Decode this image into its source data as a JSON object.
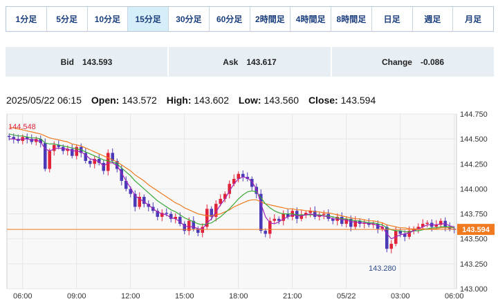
{
  "tabs": [
    {
      "label": "1分足",
      "active": false
    },
    {
      "label": "5分足",
      "active": false
    },
    {
      "label": "10分足",
      "active": false
    },
    {
      "label": "15分足",
      "active": true
    },
    {
      "label": "30分足",
      "active": false
    },
    {
      "label": "60分足",
      "active": false
    },
    {
      "label": "2時間足",
      "active": false
    },
    {
      "label": "4時間足",
      "active": false
    },
    {
      "label": "8時間足",
      "active": false
    },
    {
      "label": "日足",
      "active": false
    },
    {
      "label": "週足",
      "active": false
    },
    {
      "label": "月足",
      "active": false
    }
  ],
  "quotes": {
    "bid_label": "Bid",
    "bid_value": "143.593",
    "ask_label": "Ask",
    "ask_value": "143.617",
    "change_label": "Change",
    "change_value": "-0.086"
  },
  "ohlc": {
    "datetime": "2025/05/22 06:15",
    "open_label": "Open:",
    "open": "143.572",
    "high_label": "High:",
    "high": "143.602",
    "low_label": "Low:",
    "low": "143.560",
    "close_label": "Close:",
    "close": "143.594"
  },
  "colors": {
    "up": "#e0243a",
    "down": "#4a3ab8",
    "ma_fast": "#a223b8",
    "ma_mid": "#3aa83a",
    "ma_slow": "#f07a1f",
    "price_line": "#f07a1f",
    "grid": "#e6e6e6"
  },
  "chart_data": {
    "type": "candlestick",
    "ylim": [
      143.0,
      144.75
    ],
    "y_ticks": [
      "144.750",
      "144.500",
      "144.250",
      "144.000",
      "143.750",
      "143.500",
      "143.250",
      "143.000"
    ],
    "x_ticks": [
      "06:00",
      "09:00",
      "12:00",
      "15:00",
      "18:00",
      "21:00",
      "05/22",
      "03:00",
      "06:00"
    ],
    "x_tick_index": [
      3,
      15,
      27,
      39,
      51,
      63,
      75,
      87,
      99
    ],
    "current_price": "143.594",
    "high_annotation": "144.548",
    "low_annotation": "143.280",
    "close": [
      144.52,
      144.5,
      144.48,
      144.52,
      144.5,
      144.47,
      144.5,
      144.46,
      144.2,
      144.38,
      144.44,
      144.42,
      144.38,
      144.4,
      144.33,
      144.42,
      144.36,
      144.28,
      144.25,
      144.3,
      144.26,
      144.18,
      144.36,
      144.28,
      144.2,
      144.08,
      144.0,
      143.95,
      143.82,
      143.92,
      143.85,
      143.82,
      143.78,
      143.72,
      143.76,
      143.75,
      143.7,
      143.72,
      143.65,
      143.58,
      143.68,
      143.6,
      143.56,
      143.62,
      143.8,
      143.72,
      143.85,
      143.9,
      143.95,
      144.05,
      144.1,
      144.15,
      144.12,
      144.1,
      144.02,
      143.95,
      143.58,
      143.55,
      143.68,
      143.7,
      143.68,
      143.75,
      143.72,
      143.78,
      143.7,
      143.74,
      143.76,
      143.78,
      143.72,
      143.74,
      143.75,
      143.7,
      143.68,
      143.72,
      143.65,
      143.7,
      143.62,
      143.68,
      143.65,
      143.66,
      143.64,
      143.65,
      143.6,
      143.62,
      143.4,
      143.45,
      143.58,
      143.55,
      143.52,
      143.58,
      143.6,
      143.62,
      143.65,
      143.66,
      143.62,
      143.64,
      143.68,
      143.62,
      143.6,
      143.59
    ],
    "ma_fast": [
      144.5,
      144.5,
      144.49,
      144.5,
      144.5,
      144.49,
      144.49,
      144.47,
      144.4,
      144.38,
      144.4,
      144.41,
      144.4,
      144.4,
      144.38,
      144.38,
      144.37,
      144.34,
      144.3,
      144.29,
      144.27,
      144.23,
      144.26,
      144.26,
      144.23,
      144.16,
      144.08,
      144.01,
      143.93,
      143.9,
      143.87,
      143.84,
      143.8,
      143.77,
      143.75,
      143.74,
      143.71,
      143.7,
      143.67,
      143.63,
      143.62,
      143.62,
      143.6,
      143.6,
      143.66,
      143.7,
      143.77,
      143.84,
      143.9,
      143.98,
      144.05,
      144.1,
      144.12,
      144.11,
      144.07,
      144.0,
      143.85,
      143.72,
      143.66,
      143.65,
      143.67,
      143.7,
      143.72,
      143.74,
      143.73,
      143.73,
      143.74,
      143.75,
      143.74,
      143.73,
      143.73,
      143.72,
      143.7,
      143.7,
      143.69,
      143.69,
      143.67,
      143.67,
      143.66,
      143.66,
      143.65,
      143.65,
      143.63,
      143.62,
      143.55,
      143.5,
      143.52,
      143.54,
      143.55,
      143.56,
      143.58,
      143.6,
      143.62,
      143.64,
      143.64,
      143.64,
      143.65,
      143.65,
      143.63,
      143.62
    ],
    "ma_mid": [
      144.55,
      144.54,
      144.53,
      144.53,
      144.52,
      144.51,
      144.51,
      144.5,
      144.46,
      144.45,
      144.45,
      144.44,
      144.43,
      144.42,
      144.41,
      144.4,
      144.39,
      144.37,
      144.35,
      144.33,
      144.31,
      144.29,
      144.28,
      144.27,
      144.25,
      144.21,
      144.17,
      144.13,
      144.08,
      144.04,
      144.0,
      143.96,
      143.92,
      143.88,
      143.85,
      143.82,
      143.79,
      143.77,
      143.74,
      143.71,
      143.69,
      143.67,
      143.65,
      143.64,
      143.65,
      143.66,
      143.69,
      143.72,
      143.76,
      143.8,
      143.85,
      143.9,
      143.94,
      143.97,
      143.98,
      143.97,
      143.91,
      143.85,
      143.81,
      143.78,
      143.76,
      143.75,
      143.75,
      143.75,
      143.74,
      143.74,
      143.74,
      143.74,
      143.74,
      143.74,
      143.73,
      143.73,
      143.72,
      143.71,
      143.7,
      143.7,
      143.69,
      143.68,
      143.68,
      143.67,
      143.66,
      143.66,
      143.65,
      143.64,
      143.61,
      143.59,
      143.58,
      143.58,
      143.57,
      143.57,
      143.58,
      143.58,
      143.59,
      143.6,
      143.61,
      143.61,
      143.62,
      143.62,
      143.62,
      143.61
    ],
    "ma_slow": [
      144.62,
      144.61,
      144.6,
      144.59,
      144.58,
      144.57,
      144.56,
      144.55,
      144.53,
      144.51,
      144.5,
      144.49,
      144.48,
      144.47,
      144.45,
      144.44,
      144.43,
      144.41,
      144.39,
      144.37,
      144.35,
      144.33,
      144.31,
      144.29,
      144.27,
      144.24,
      144.21,
      144.18,
      144.14,
      144.11,
      144.08,
      144.04,
      144.01,
      143.98,
      143.95,
      143.92,
      143.89,
      143.86,
      143.84,
      143.81,
      143.79,
      143.77,
      143.75,
      143.74,
      143.73,
      143.73,
      143.74,
      143.75,
      143.77,
      143.79,
      143.82,
      143.84,
      143.86,
      143.88,
      143.89,
      143.89,
      143.87,
      143.85,
      143.84,
      143.83,
      143.82,
      143.81,
      143.8,
      143.8,
      143.79,
      143.79,
      143.78,
      143.78,
      143.77,
      143.77,
      143.76,
      143.76,
      143.75,
      143.74,
      143.73,
      143.72,
      143.71,
      143.7,
      143.7,
      143.69,
      143.68,
      143.68,
      143.67,
      143.66,
      143.64,
      143.63,
      143.62,
      143.61,
      143.61,
      143.6,
      143.6,
      143.6,
      143.6,
      143.6,
      143.6,
      143.6,
      143.61,
      143.61,
      143.61,
      143.61
    ]
  }
}
